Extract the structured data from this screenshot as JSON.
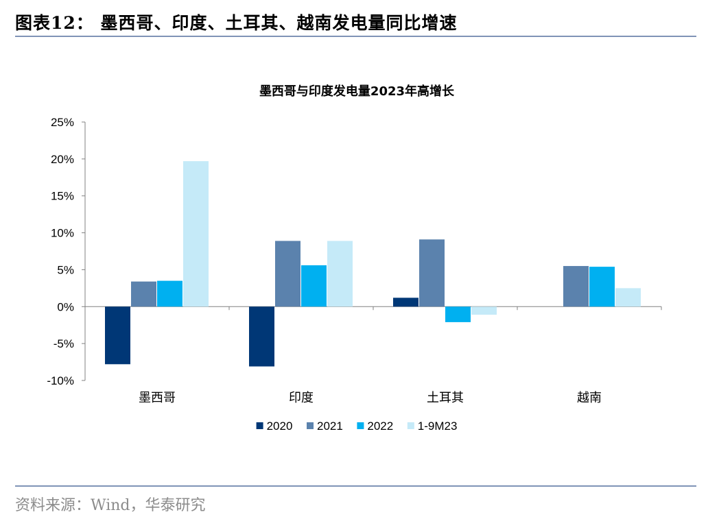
{
  "figure_title": "图表12：  墨西哥、印度、土耳其、越南发电量同比增速",
  "source": "资料来源：Wind，华泰研究",
  "colors": {
    "rule": "#7f93b6",
    "axis": "#808080"
  },
  "chart_data": {
    "type": "bar",
    "title": "墨西哥与印度发电量2023年高增长",
    "categories": [
      "墨西哥",
      "印度",
      "土耳其",
      "越南"
    ],
    "series": [
      {
        "name": "2020",
        "color": "#003776",
        "values": [
          -7.8,
          -8.1,
          1.2,
          null
        ]
      },
      {
        "name": "2021",
        "color": "#5b82ad",
        "values": [
          3.4,
          8.9,
          9.1,
          5.5
        ]
      },
      {
        "name": "2022",
        "color": "#00b0f0",
        "values": [
          3.5,
          5.6,
          -2.1,
          5.4
        ]
      },
      {
        "name": "1-9M23",
        "color": "#c5eaf8",
        "values": [
          19.7,
          8.9,
          -1.1,
          2.5
        ]
      }
    ],
    "ylim": [
      -10,
      25
    ],
    "yticks": [
      -10,
      -5,
      0,
      5,
      10,
      15,
      20,
      25
    ],
    "ytick_labels": [
      "-10%",
      "-5%",
      "0%",
      "5%",
      "10%",
      "15%",
      "20%",
      "25%"
    ],
    "xlabel": "",
    "ylabel": "",
    "legend": "bottom"
  }
}
